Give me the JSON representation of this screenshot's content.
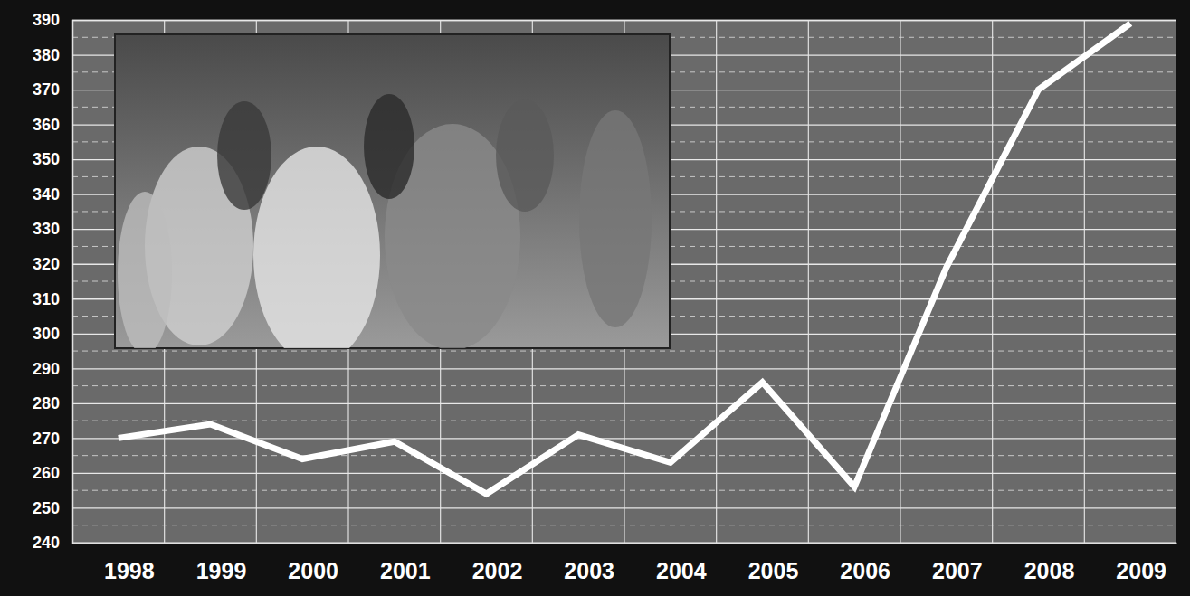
{
  "chart_data": {
    "type": "line",
    "categories": [
      "1998",
      "1999",
      "2000",
      "2001",
      "2002",
      "2003",
      "2004",
      "2005",
      "2006",
      "2007",
      "2008",
      "2009"
    ],
    "values": [
      270,
      274,
      264,
      269,
      254,
      271,
      263,
      286,
      256,
      319,
      370,
      389
    ],
    "color": "#ffffff",
    "ylim": [
      240,
      390
    ],
    "yticks": [
      240,
      250,
      260,
      270,
      280,
      290,
      300,
      310,
      320,
      330,
      340,
      350,
      360,
      370,
      380,
      390
    ],
    "grid": true
  }
}
